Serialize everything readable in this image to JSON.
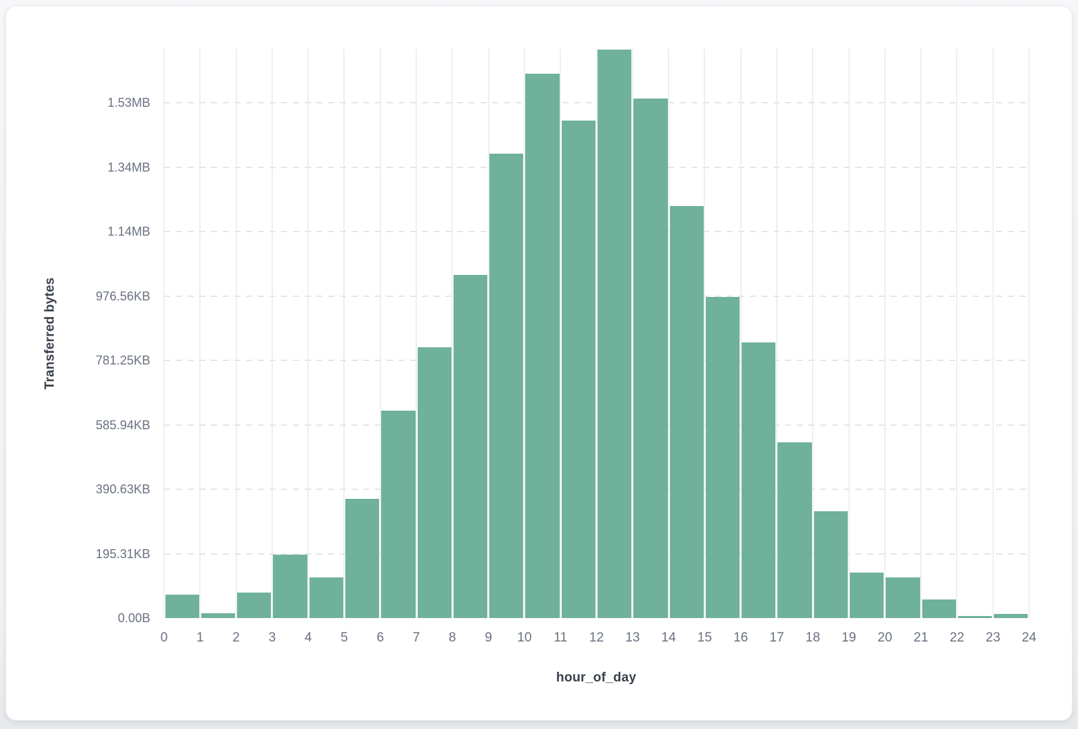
{
  "page": {
    "background_color": "#f1f2f5",
    "card_background_color": "#ffffff"
  },
  "chart_data": {
    "type": "bar",
    "title": "",
    "xlabel": "hour_of_day",
    "ylabel": "Transferred bytes",
    "categories": [
      0,
      1,
      2,
      3,
      4,
      5,
      6,
      7,
      8,
      9,
      10,
      11,
      12,
      13,
      14,
      15,
      16,
      17,
      18,
      19,
      20,
      21,
      22,
      23
    ],
    "values": [
      73000,
      15500,
      79000,
      197000,
      126000,
      370000,
      644000,
      841000,
      1065000,
      1442000,
      1690000,
      1544000,
      1765000,
      1613000,
      1279000,
      997000,
      856000,
      546000,
      332000,
      141000,
      126000,
      58000,
      6500,
      13000
    ],
    "values_unit": "bytes",
    "x_tick_labels": [
      "0",
      "1",
      "2",
      "3",
      "4",
      "5",
      "6",
      "7",
      "8",
      "9",
      "10",
      "11",
      "12",
      "13",
      "14",
      "15",
      "16",
      "17",
      "18",
      "19",
      "20",
      "21",
      "22",
      "23",
      "24"
    ],
    "y_ticks": [
      {
        "value": 0,
        "label": "0.00B"
      },
      {
        "value": 200000,
        "label": "195.31KB"
      },
      {
        "value": 400000,
        "label": "390.63KB"
      },
      {
        "value": 600000,
        "label": "585.94KB"
      },
      {
        "value": 800000,
        "label": "781.25KB"
      },
      {
        "value": 1000000,
        "label": "976.56KB"
      },
      {
        "value": 1200000,
        "label": "1.14MB"
      },
      {
        "value": 1400000,
        "label": "1.34MB"
      },
      {
        "value": 1600000,
        "label": "1.53MB"
      }
    ],
    "ylim": [
      0,
      1767000
    ],
    "bar_color": "#6fb19b",
    "grid": true,
    "legend": "none"
  }
}
